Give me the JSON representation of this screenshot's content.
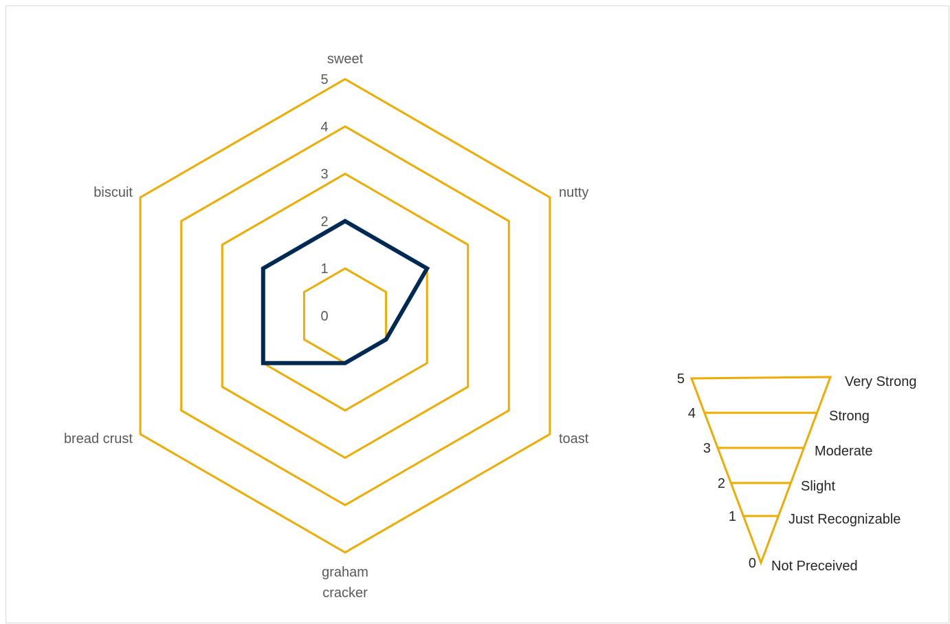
{
  "chart_data": {
    "type": "radar",
    "axes": [
      "sweet",
      "nutty",
      "toast",
      "graham cracker",
      "bread crust",
      "biscuit"
    ],
    "axis_display": {
      "graham cracker": [
        "graham",
        "cracker"
      ]
    },
    "ticks": [
      "0",
      "1",
      "2",
      "3",
      "4",
      "5"
    ],
    "range": [
      0,
      5
    ],
    "series": [
      {
        "values": [
          2,
          2,
          1,
          1,
          2,
          2
        ]
      }
    ],
    "colors": {
      "grid": "#f0ab00",
      "series": "#002a54"
    }
  },
  "intensity_scale": {
    "levels": [
      {
        "value": "5",
        "label": "Very Strong"
      },
      {
        "value": "4",
        "label": "Strong"
      },
      {
        "value": "3",
        "label": "Moderate"
      },
      {
        "value": "2",
        "label": "Slight"
      },
      {
        "value": "1",
        "label": "Just Recognizable"
      },
      {
        "value": "0",
        "label": "Not Preceived"
      }
    ]
  }
}
